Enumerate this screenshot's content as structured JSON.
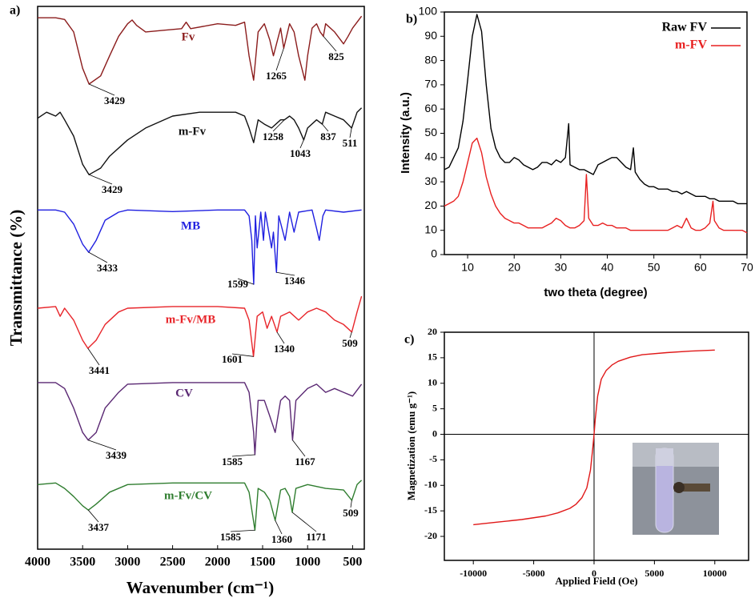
{
  "chart_data": [
    {
      "type": "line",
      "label": "a)",
      "xlabel": "Wavenumber (cm⁻¹)",
      "ylabel": "Transmittance (%)",
      "xlim": [
        4000,
        370
      ],
      "ylim": [
        0,
        100
      ],
      "xticks": [
        4000,
        3500,
        3000,
        2500,
        2000,
        1500,
        1000,
        500
      ],
      "series": [
        {
          "name": "Fv",
          "color": "#8b1c1c",
          "peaks": [
            3429,
            1265,
            825
          ],
          "x": [
            4000,
            3800,
            3700,
            3600,
            3500,
            3429,
            3300,
            3200,
            3100,
            3000,
            2950,
            2900,
            2800,
            2600,
            2400,
            2350,
            2300,
            2000,
            1800,
            1700,
            1650,
            1600,
            1550,
            1480,
            1420,
            1380,
            1300,
            1265,
            1200,
            1150,
            1100,
            1030,
            1000,
            950,
            900,
            860,
            825,
            800,
            700,
            600,
            550,
            500,
            450,
            400
          ],
          "values": [
            97.9,
            97.9,
            97.6,
            95.3,
            88.6,
            85.7,
            87.2,
            90.9,
            94.5,
            96.8,
            97.5,
            96.5,
            95.3,
            95.6,
            95.9,
            97.1,
            95.9,
            96.8,
            96.5,
            97.1,
            90.9,
            86.4,
            95.3,
            96.8,
            93.8,
            90.9,
            96.0,
            92.3,
            96.8,
            95.3,
            90.9,
            86.4,
            90.9,
            96.0,
            96.8,
            95.3,
            94.5,
            96.8,
            95.3,
            93.1,
            94.5,
            96.0,
            97.1,
            98.2
          ]
        },
        {
          "name": "m-Fv",
          "color": "#111111",
          "peaks": [
            3429,
            1258,
            1043,
            837,
            511
          ],
          "x": [
            4000,
            3900,
            3800,
            3750,
            3700,
            3600,
            3500,
            3429,
            3300,
            3200,
            3000,
            2800,
            2500,
            2200,
            2000,
            1800,
            1700,
            1650,
            1600,
            1550,
            1480,
            1400,
            1300,
            1258,
            1200,
            1150,
            1100,
            1043,
            1000,
            900,
            837,
            800,
            700,
            600,
            511,
            450,
            400
          ],
          "values": [
            79.4,
            80.5,
            79.8,
            80.5,
            79.1,
            76.1,
            70.9,
            69.0,
            70.2,
            72.4,
            75.4,
            77.6,
            79.8,
            80.5,
            80.5,
            80.5,
            79.8,
            77.6,
            74.9,
            79.1,
            78.3,
            77.6,
            79.1,
            79.1,
            79.8,
            79.1,
            77.6,
            75.4,
            77.6,
            79.1,
            78.3,
            80.5,
            79.8,
            79.1,
            77.6,
            80.5,
            81.3
          ]
        },
        {
          "name": "MB",
          "color": "#1f1fe0",
          "peaks": [
            3433,
            1599,
            1346
          ],
          "x": [
            4000,
            3800,
            3700,
            3600,
            3500,
            3433,
            3350,
            3250,
            3100,
            3000,
            2500,
            2000,
            1700,
            1650,
            1620,
            1599,
            1580,
            1560,
            1520,
            1490,
            1470,
            1400,
            1380,
            1346,
            1320,
            1250,
            1200,
            1150,
            1100,
            950,
            900,
            870,
            830,
            800,
            600,
            400
          ],
          "values": [
            62.5,
            62.5,
            62.1,
            59.9,
            56.2,
            54.7,
            56.9,
            60.6,
            62.1,
            62.5,
            62.2,
            62.5,
            62.5,
            61.4,
            56.9,
            48.8,
            61.4,
            55.5,
            62.1,
            56.9,
            62.1,
            55.5,
            58.4,
            51.0,
            61.4,
            56.9,
            62.1,
            58.4,
            62.1,
            62.5,
            59.1,
            56.9,
            61.4,
            62.5,
            62.1,
            62.5
          ]
        },
        {
          "name": "m-Fv/MB",
          "color": "#e8252a",
          "peaks": [
            3441,
            1601,
            1340,
            509
          ],
          "x": [
            4000,
            3800,
            3750,
            3700,
            3600,
            3500,
            3441,
            3350,
            3250,
            3100,
            3000,
            2500,
            2000,
            1700,
            1650,
            1601,
            1560,
            1500,
            1450,
            1400,
            1340,
            1300,
            1200,
            1100,
            1000,
            900,
            800,
            700,
            600,
            509,
            450,
            400
          ],
          "values": [
            44.4,
            44.7,
            42.9,
            44.4,
            42.2,
            38.5,
            37.0,
            38.5,
            41.4,
            43.7,
            44.4,
            44.7,
            44.7,
            44.4,
            42.2,
            35.5,
            42.9,
            43.7,
            40.7,
            42.9,
            40.0,
            42.9,
            43.7,
            42.2,
            43.7,
            44.4,
            43.7,
            42.2,
            41.4,
            40.0,
            43.7,
            46.6
          ]
        },
        {
          "name": "CV",
          "color": "#5a2873",
          "peaks": [
            3439,
            1585,
            1167
          ],
          "x": [
            4000,
            3800,
            3700,
            3600,
            3500,
            3439,
            3350,
            3250,
            3100,
            3000,
            2500,
            2000,
            1700,
            1650,
            1600,
            1585,
            1550,
            1480,
            1420,
            1360,
            1300,
            1250,
            1200,
            1167,
            1130,
            1000,
            900,
            800,
            700,
            600,
            500,
            400
          ],
          "values": [
            30.7,
            30.7,
            29.6,
            26.0,
            21.5,
            20.1,
            21.5,
            26.0,
            28.9,
            30.4,
            30.7,
            30.7,
            30.7,
            28.9,
            21.5,
            17.4,
            27.4,
            27.4,
            24.5,
            21.5,
            27.4,
            28.2,
            27.4,
            20.1,
            27.4,
            29.6,
            30.4,
            28.9,
            29.6,
            28.9,
            28.2,
            30.4
          ]
        },
        {
          "name": "m-Fv/CV",
          "color": "#2f7d2f",
          "peaks": [
            3437,
            1585,
            1360,
            1171,
            509
          ],
          "x": [
            4000,
            3800,
            3700,
            3600,
            3500,
            3437,
            3350,
            3200,
            3000,
            2500,
            2000,
            1700,
            1650,
            1585,
            1550,
            1480,
            1420,
            1360,
            1300,
            1250,
            1200,
            1171,
            1130,
            1000,
            800,
            600,
            509,
            450,
            400
          ],
          "values": [
            11.9,
            12.2,
            11.2,
            9.7,
            8.0,
            7.2,
            8.3,
            10.5,
            11.9,
            12.2,
            12.2,
            12.2,
            10.5,
            3.5,
            11.2,
            10.5,
            9.0,
            5.3,
            10.9,
            11.2,
            9.7,
            6.8,
            11.2,
            11.9,
            11.2,
            10.9,
            9.0,
            11.9,
            12.7
          ]
        }
      ]
    },
    {
      "type": "line",
      "label": "b)",
      "xlabel": "two theta (degree)",
      "ylabel": "Intensity (a.u.)",
      "xlim": [
        5,
        70
      ],
      "ylim": [
        0,
        100
      ],
      "xticks": [
        10,
        20,
        30,
        40,
        50,
        60,
        70
      ],
      "yticks": [
        0,
        10,
        20,
        30,
        40,
        50,
        60,
        70,
        80,
        90,
        100
      ],
      "legend": "top-right",
      "series": [
        {
          "name": "Raw FV",
          "color": "#000000",
          "x": [
            5,
            6,
            7,
            8,
            9,
            10,
            11,
            12,
            13,
            14,
            15,
            16,
            17,
            18,
            19,
            20,
            21,
            22,
            23,
            24,
            25,
            26,
            27,
            28,
            29,
            30,
            31,
            31.7,
            32,
            33,
            34,
            35,
            36,
            37,
            38,
            39,
            40,
            41,
            42,
            43,
            44,
            45,
            45.6,
            46,
            47,
            48,
            49,
            50,
            51,
            52,
            53,
            54,
            55,
            56,
            57,
            58,
            59,
            60,
            61,
            62,
            63,
            64,
            65,
            66,
            67,
            68,
            69,
            70
          ],
          "values": [
            35,
            36,
            40,
            44,
            55,
            72,
            90,
            99,
            92,
            70,
            52,
            44,
            40,
            38,
            38,
            40,
            39,
            37,
            36,
            35,
            36,
            38,
            38,
            37,
            39,
            38,
            40,
            54,
            37,
            36,
            35,
            35,
            34,
            33,
            37,
            38,
            39,
            40,
            40,
            38,
            36,
            35,
            44,
            34,
            31,
            29,
            28,
            28,
            27,
            27,
            27,
            26,
            26,
            25,
            26,
            25,
            24,
            24,
            24,
            23,
            23,
            22,
            22,
            22,
            22,
            21,
            21,
            21
          ]
        },
        {
          "name": "m-FV",
          "color": "#e82020",
          "x": [
            5,
            6,
            7,
            8,
            9,
            10,
            11,
            12,
            13,
            14,
            15,
            16,
            17,
            18,
            19,
            20,
            21,
            22,
            23,
            24,
            25,
            26,
            27,
            28,
            29,
            30,
            31,
            32,
            33,
            34,
            35,
            35.5,
            36,
            37,
            38,
            39,
            40,
            41,
            42,
            43,
            44,
            45,
            46,
            47,
            48,
            49,
            50,
            51,
            52,
            53,
            54,
            55,
            56,
            57,
            58,
            59,
            60,
            61,
            62,
            62.7,
            63,
            64,
            65,
            66,
            67,
            68,
            69,
            70
          ],
          "values": [
            20,
            21,
            22,
            24,
            30,
            38,
            46,
            48,
            42,
            32,
            25,
            20,
            17,
            15,
            14,
            13,
            13,
            12,
            11,
            11,
            11,
            11,
            12,
            13,
            15,
            14,
            12,
            11,
            11,
            12,
            14,
            33,
            15,
            12,
            12,
            13,
            12,
            12,
            11,
            11,
            11,
            10,
            10,
            10,
            10,
            10,
            10,
            10,
            10,
            10,
            11,
            12,
            11,
            15,
            11,
            10,
            10,
            11,
            13,
            22,
            14,
            11,
            10,
            10,
            10,
            10,
            10,
            9
          ]
        }
      ]
    },
    {
      "type": "line",
      "label": "c)",
      "xlabel": "Applied Field (Oe)",
      "ylabel": "Magnetization (emu g⁻¹)",
      "xlim": [
        -12400,
        12800
      ],
      "ylim": [
        -24.7,
        20
      ],
      "xticks": [
        -10000,
        -5000,
        0,
        5000,
        10000
      ],
      "yticks": [
        -20,
        -15,
        -10,
        -5,
        0,
        5,
        10,
        15,
        20
      ],
      "series": [
        {
          "color": "#e01818",
          "x": [
            -10000,
            -8000,
            -6000,
            -4000,
            -3000,
            -2000,
            -1500,
            -1000,
            -600,
            -300,
            -100,
            0,
            100,
            300,
            600,
            1000,
            1500,
            2000,
            3000,
            4000,
            6000,
            8000,
            10000
          ],
          "values": [
            -17.7,
            -17.2,
            -16.7,
            -16.0,
            -15.4,
            -14.5,
            -13.7,
            -12.4,
            -10.5,
            -7,
            -2.5,
            0,
            3,
            7.5,
            10.8,
            12.5,
            13.6,
            14.3,
            15.1,
            15.6,
            16.0,
            16.3,
            16.5
          ]
        }
      ]
    }
  ]
}
